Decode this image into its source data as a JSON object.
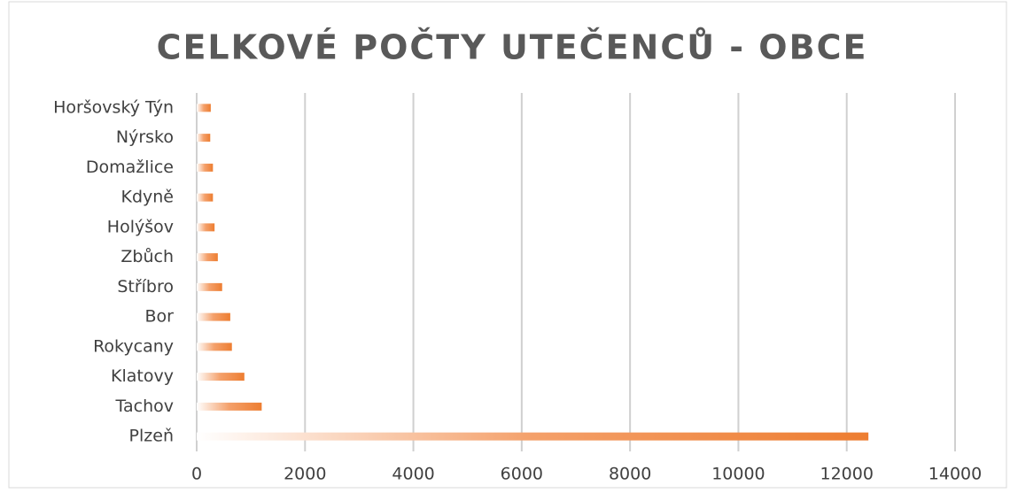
{
  "chart_data": {
    "type": "bar",
    "orientation": "horizontal",
    "title": "CELKOVÉ POČTY UTEČENCŮ - OBCE",
    "categories": [
      "Horšovský Týn",
      "Nýrsko",
      "Domažlice",
      "Kdyně",
      "Holýšov",
      "Zbůch",
      "Stříbro",
      "Bor",
      "Rokycany",
      "Klatovy",
      "Tachov",
      "Plzeň"
    ],
    "values": [
      260,
      250,
      300,
      300,
      330,
      390,
      470,
      620,
      650,
      880,
      1200,
      12400
    ],
    "color": "#ed7d31",
    "xlim": [
      0,
      14000
    ],
    "xticks": [
      0,
      2000,
      4000,
      6000,
      8000,
      10000,
      12000,
      14000
    ],
    "grid": true
  }
}
